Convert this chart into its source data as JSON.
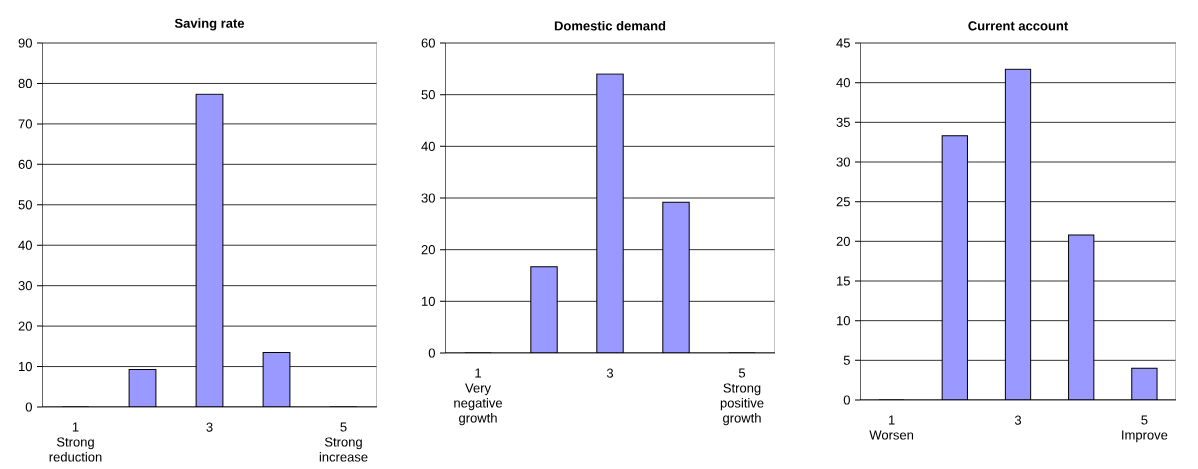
{
  "chart_data": [
    {
      "type": "bar",
      "title": "Saving rate",
      "categories": [
        "1\nStrong\nreduction",
        null,
        "3",
        null,
        "5\nStrong\nincrease"
      ],
      "values": [
        0,
        9.3,
        77.3,
        13.5,
        0
      ],
      "color": "#9999ff",
      "ylim": [
        0,
        90
      ],
      "yticks": [
        0,
        10,
        20,
        30,
        40,
        50,
        60,
        70,
        80,
        90
      ],
      "grid": "y"
    },
    {
      "type": "bar",
      "title": "Domestic demand",
      "categories": [
        "1\nVery\nnegative\ngrowth",
        null,
        "3",
        null,
        "5\nStrong\npositive\ngrowth"
      ],
      "values": [
        0,
        16.7,
        54,
        29.2,
        0
      ],
      "color": "#9999ff",
      "ylim": [
        0,
        60
      ],
      "yticks": [
        0,
        10,
        20,
        30,
        40,
        50,
        60
      ],
      "grid": "y"
    },
    {
      "type": "bar",
      "title": "Current account",
      "categories": [
        "1\nWorsen",
        null,
        "3",
        null,
        "5\nImprove"
      ],
      "values": [
        0,
        33.3,
        41.7,
        20.8,
        4.0
      ],
      "color": "#9999ff",
      "ylim": [
        0,
        45
      ],
      "yticks": [
        0,
        5,
        10,
        15,
        20,
        25,
        30,
        35,
        40,
        45
      ],
      "grid": "y"
    }
  ]
}
